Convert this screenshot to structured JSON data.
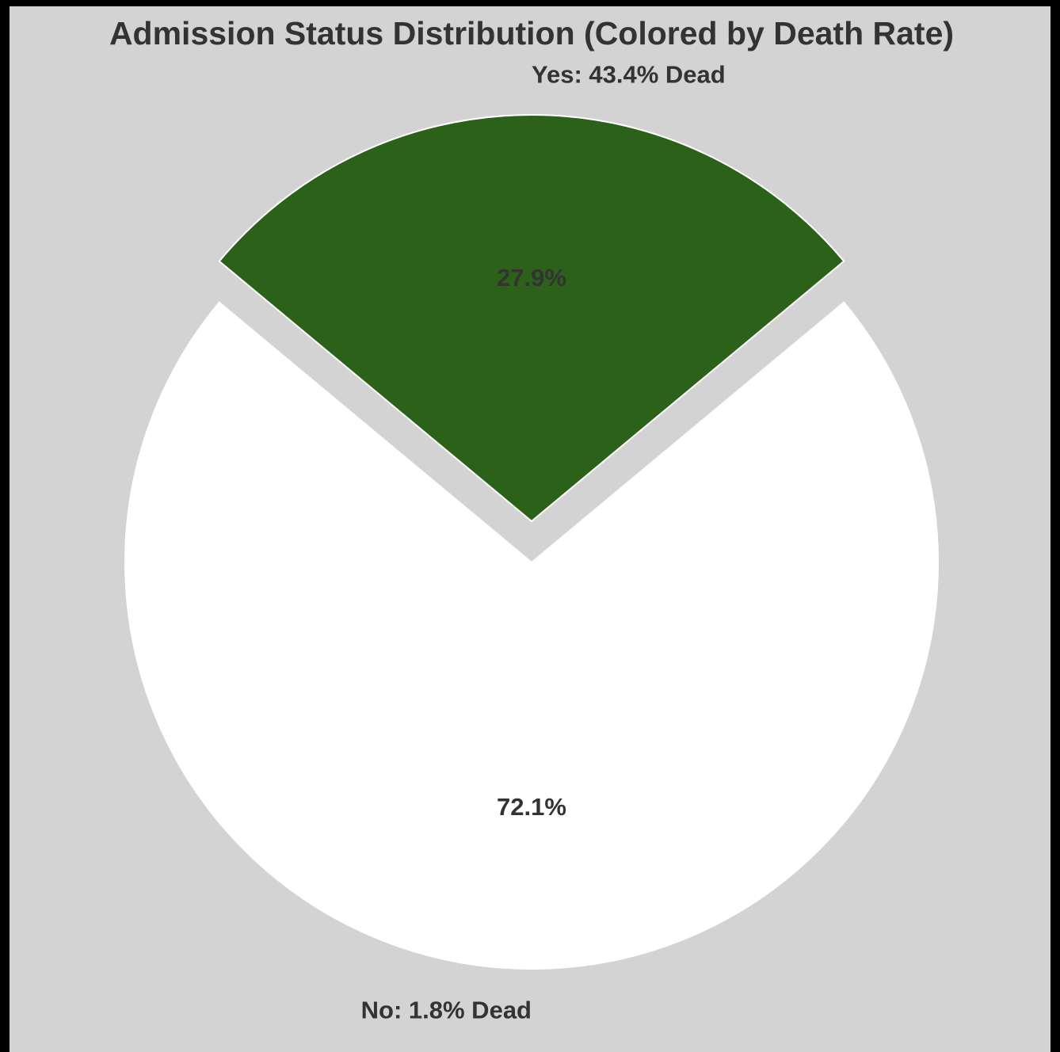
{
  "chart_data": {
    "type": "pie",
    "title": "Admission Status Distribution (Colored by Death Rate)",
    "slices": [
      {
        "category": "Yes",
        "share_percent": 27.9,
        "share_label": "27.9%",
        "death_rate_percent": 43.4,
        "label": "Yes: 43.4% Dead",
        "color": "#2c6119",
        "exploded": true
      },
      {
        "category": "No",
        "share_percent": 72.1,
        "share_label": "72.1%",
        "death_rate_percent": 1.8,
        "label": "No: 1.8% Dead",
        "color": "#ffffff",
        "exploded": false
      }
    ],
    "legend": "none"
  },
  "colors": {
    "background": "#d3d3d3",
    "outer_frame": "#000000",
    "text": "#333333",
    "wedge_edge": "#ffffff"
  }
}
